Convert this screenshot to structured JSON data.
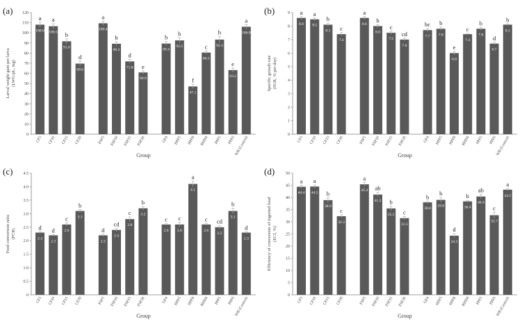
{
  "bar_color": "#595959",
  "axis_color": "#808080",
  "chart_data": [
    {
      "type": "bar",
      "panel": "(a)",
      "xlabel": "Group",
      "ylabel": "Larval weight gain per larva",
      "ylabel2": "(LWG/pL, mg)",
      "ylim": [
        0,
        120
      ],
      "yticks": [
        0,
        10,
        20,
        30,
        40,
        50,
        60,
        70,
        80,
        90,
        100,
        110,
        120
      ],
      "categories": [
        "CF5",
        "CF10",
        "CF15",
        "CF20",
        "FSF5",
        "FSF10",
        "FSF15",
        "FSF20",
        "GF4",
        "HPF5",
        "HPF8",
        "RHH4",
        "PPF5",
        "PPF6",
        "WB (Control)"
      ],
      "values": [
        108.0,
        106.5,
        91.6,
        69.6,
        109.4,
        89.2,
        71.8,
        60.9,
        89.4,
        92.5,
        47.1,
        80.5,
        93.3,
        63.2,
        106.0
      ],
      "value_labels": [
        "108.0",
        "106.5",
        "91.6",
        "69.6",
        "109.4",
        "89.2",
        "71.8",
        "60.9",
        "89.4",
        "92.5",
        "47.1",
        "80.5",
        "93.3",
        "63.2",
        "106.0"
      ],
      "errors": [
        2.5,
        2.5,
        2.5,
        2.5,
        2,
        2,
        2,
        1.5,
        2,
        2.5,
        2,
        1.5,
        3,
        2,
        2
      ],
      "letters": [
        "a",
        "a",
        "b",
        "d",
        "a",
        "b",
        "d",
        "e",
        "b",
        "b",
        "f",
        "c",
        "b",
        "e",
        "a"
      ]
    },
    {
      "type": "bar",
      "panel": "(b)",
      "xlabel": "Group",
      "ylabel": "Specific growth rate",
      "ylabel2": "(SGR, % per day)",
      "ylim": [
        0,
        9
      ],
      "yticks": [
        0,
        1,
        2,
        3,
        4,
        5,
        6,
        7,
        8,
        9
      ],
      "categories": [
        "CF5",
        "CF10",
        "CF15",
        "CF20",
        "FSF5",
        "FSF10",
        "FSF15",
        "FSF20",
        "GF4",
        "HPF5",
        "HPF8",
        "RHH4",
        "PPF5",
        "PPF6",
        "WB (Control)"
      ],
      "values": [
        8.6,
        8.5,
        8.1,
        7.4,
        8.6,
        8.0,
        7.5,
        7.0,
        7.7,
        7.8,
        6.0,
        7.4,
        7.8,
        6.7,
        8.1
      ],
      "value_labels": [
        "8.6",
        "8.5",
        "8.1",
        "7.4",
        "8.6",
        "8.0",
        "7.5",
        "7.0",
        "7.7",
        "7.8",
        "6.0",
        "7.4",
        "7.8",
        "6.7",
        "8.1"
      ],
      "errors": [
        0.1,
        0.1,
        0.12,
        0.12,
        0.1,
        0.1,
        0.12,
        0.1,
        0.12,
        0.12,
        0.12,
        0.06,
        0.1,
        0.1,
        0.06
      ],
      "letters": [
        "a",
        "a",
        "b",
        "c",
        "a",
        "b",
        "c",
        "cd",
        "bc",
        "b",
        "e",
        "c",
        "b",
        "d",
        "b"
      ]
    },
    {
      "type": "bar",
      "panel": "(c)",
      "xlabel": "Group",
      "ylabel": "Feed conversion ratio",
      "ylabel2": "(FCR)",
      "ylim": [
        0,
        4.5
      ],
      "yticks": [
        0,
        0.5,
        1.0,
        1.5,
        2.0,
        2.5,
        3.0,
        3.5,
        4.0,
        4.5
      ],
      "ytick_labels": [
        "0",
        "0.5",
        "1.0",
        "1.5",
        "2.0",
        "2.5",
        "3.0",
        "3.5",
        "4.0",
        "4.5"
      ],
      "categories": [
        "CF5",
        "CF10",
        "CF15",
        "CF20",
        "FSF5",
        "FSF10",
        "FSF15",
        "FSF20",
        "GF4",
        "HPF5",
        "HPF8",
        "RHH4",
        "PPF5",
        "PPF6",
        "WB (Control)"
      ],
      "values": [
        2.3,
        2.2,
        2.6,
        3.1,
        2.2,
        2.4,
        2.8,
        3.2,
        2.6,
        2.6,
        4.1,
        2.6,
        2.5,
        3.1,
        2.3
      ],
      "value_labels": [
        "2.3",
        "2.2",
        "2.6",
        "3.1",
        "2.2",
        "2.4",
        "2.8",
        "3.2",
        "2.6",
        "2.6",
        "4.1",
        "2.6",
        "2.5",
        "3.1",
        "2.3"
      ],
      "errors": [
        0.03,
        0.03,
        0.06,
        0.05,
        0.04,
        0.06,
        0.08,
        0.07,
        0.03,
        0.08,
        0.1,
        0.03,
        0.06,
        0.1,
        0.03
      ],
      "letters": [
        "d",
        "d",
        "c",
        "b",
        "d",
        "cd",
        "c",
        "b",
        "c",
        "c",
        "a",
        "c",
        "cd",
        "b",
        "d"
      ]
    },
    {
      "type": "bar",
      "panel": "(d)",
      "xlabel": "Group",
      "ylabel": "Efficiency of conversion of ingested food",
      "ylabel2": "(ECI, %)",
      "ylim": [
        0,
        50
      ],
      "yticks": [
        0,
        5,
        10,
        15,
        20,
        25,
        30,
        35,
        40,
        45,
        50
      ],
      "categories": [
        "CF5",
        "CF10",
        "CF15",
        "CF20",
        "FSF5",
        "FSF10",
        "FSF15",
        "FSF20",
        "GF4",
        "HPF5",
        "HPF8",
        "RHH4",
        "PPF5",
        "PPF6",
        "WB (Control)"
      ],
      "values": [
        44.4,
        44.5,
        38.9,
        32.3,
        45.4,
        41.2,
        35.5,
        31.5,
        38.0,
        39.0,
        24.3,
        38.4,
        40.4,
        32.7,
        43.2
      ],
      "value_labels": [
        "44.4",
        "44.5",
        "38.9",
        "32.3",
        "45.4",
        "41.2",
        "35.5",
        "31.5",
        "38.0",
        "39.0",
        "24.3",
        "38.4",
        "40.4",
        "32.7",
        "43.2"
      ],
      "errors": [
        0.6,
        0.6,
        1.0,
        0.6,
        0.8,
        0.9,
        1.0,
        0.7,
        0.5,
        1.0,
        0.8,
        0.4,
        0.9,
        1.2,
        0.5
      ],
      "letters": [
        "a",
        "a",
        "b",
        "c",
        "a",
        "ab",
        "b",
        "c",
        "b",
        "b",
        "d",
        "b",
        "ab",
        "c",
        "a"
      ]
    }
  ]
}
